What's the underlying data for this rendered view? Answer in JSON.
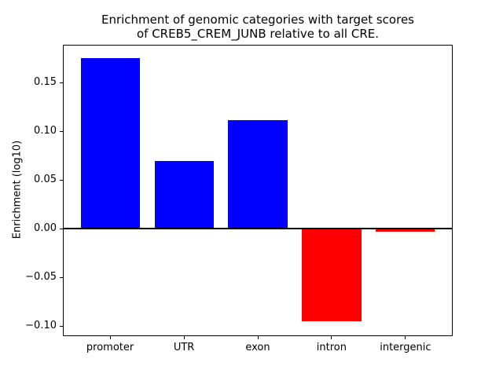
{
  "chart_data": {
    "type": "bar",
    "title_lines": [
      "Enrichment of genomic categories with target scores",
      "of CREB5_CREM_JUNB relative to all CRE."
    ],
    "title": "Enrichment of genomic categories with target scores of CREB5_CREM_JUNB relative to all CRE.",
    "xlabel": "",
    "ylabel": "Enrichment (log10)",
    "categories": [
      "promoter",
      "UTR",
      "exon",
      "intron",
      "intergenic"
    ],
    "values": [
      0.175,
      0.069,
      0.111,
      -0.095,
      -0.003
    ],
    "bar_colors": [
      "#0000ff",
      "#0000ff",
      "#0000ff",
      "#ff0000",
      "#ff0000"
    ],
    "positive_color": "#0000ff",
    "negative_color": "#ff0000",
    "ylim": [
      -0.1105,
      0.1887
    ],
    "xlim": [
      -0.64,
      4.64
    ],
    "bar_width_fraction": 0.8,
    "yticks": [
      0.15,
      0.1,
      0.05,
      0.0,
      -0.05,
      -0.1
    ],
    "ytick_labels": [
      "0.15",
      "0.10",
      "0.05",
      "0.00",
      "−0.05",
      "−0.10"
    ],
    "zero_line": true,
    "grid": false,
    "legend": "none",
    "background_color": "#ffffff",
    "text_color": "#000000"
  }
}
